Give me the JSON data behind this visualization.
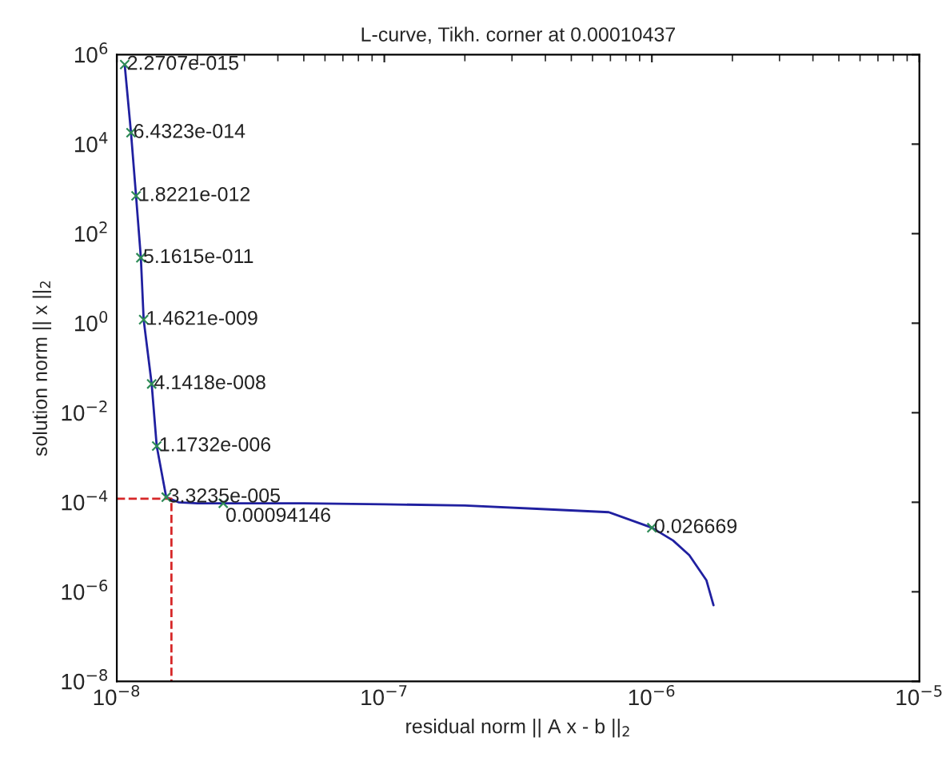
{
  "chart_data": {
    "type": "line",
    "title": "L-curve, Tikh. corner at 0.00010437",
    "xlabel": "residual norm || A x - b ||$_{2}$",
    "ylabel": "solution norm || x ||$_{2}$",
    "log": "xy",
    "grid": false,
    "line_style": "solid",
    "xlim": [
      1e-08,
      1e-05
    ],
    "xticks": [
      {
        "value": 1e-08,
        "label": "10$^{−8}$"
      },
      {
        "value": 1e-07,
        "label": "10$^{−7}$"
      },
      {
        "value": 1e-06,
        "label": "10$^{−6}$"
      },
      {
        "value": 1e-05,
        "label": "10$^{−5}$"
      }
    ],
    "ylim": [
      1e-08,
      1000000.0
    ],
    "yticks": [
      {
        "value": 1e-08,
        "label": "10$^{−8}$"
      },
      {
        "value": 1e-06,
        "label": "10$^{−6}$"
      },
      {
        "value": 0.0001,
        "label": "10$^{−4}$"
      },
      {
        "value": 0.01,
        "label": "10$^{−2}$"
      },
      {
        "value": 1,
        "label": "10$^{0}$"
      },
      {
        "value": 100,
        "label": "10$^{2}$"
      },
      {
        "value": 10000,
        "label": "10$^{4}$"
      },
      {
        "value": 1000000,
        "label": "10$^{6}$"
      }
    ],
    "series": [
      {
        "color": "#2020a0",
        "x": [
          1.07e-08,
          1.13e-08,
          1.18e-08,
          1.23e-08,
          1.26e-08,
          1.35e-08,
          1.41e-08,
          1.53e-08,
          1.7e-08,
          2e-08,
          2.5e-08,
          5e-08,
          1e-07,
          2e-07,
          4e-07,
          6.9e-07,
          1e-06,
          1.2e-06,
          1.38e-06,
          1.6e-06,
          1.7e-06
        ],
        "values": [
          600000.0,
          18000.0,
          700,
          29,
          1.2,
          0.044,
          0.0018,
          0.00013,
          0.0001,
          9.5e-05,
          9.5e-05,
          9.5e-05,
          9e-05,
          8.5e-05,
          7e-05,
          6e-05,
          2.7e-05,
          1.4e-05,
          6.6e-06,
          1.8e-06,
          5e-07
        ]
      },
      {
        "type": "line",
        "color": "#d62728",
        "line_style": "dashed",
        "x": [
          1e-08,
          1.6e-08,
          1.6e-08
        ],
        "values": [
          0.00012,
          0.00012,
          1e-08
        ]
      },
      {
        "type": "scatter",
        "color": "#2e8b57",
        "marker": "cross",
        "x": [
          1.07e-08,
          1.13e-08,
          1.18e-08,
          1.23e-08,
          1.26e-08,
          1.35e-08,
          1.41e-08,
          1.53e-08,
          2.5e-08,
          1e-06
        ],
        "values": [
          600000.0,
          18000.0,
          700,
          29,
          1.2,
          0.044,
          0.0018,
          0.00013,
          9.5e-05,
          2.7e-05
        ]
      }
    ],
    "annotations": [
      {
        "text": "2.2707e-015",
        "x": 1.07e-08,
        "y": 600000.0
      },
      {
        "text": "6.4323e-014",
        "x": 1.13e-08,
        "y": 18000.0
      },
      {
        "text": "1.8221e-012",
        "x": 1.18e-08,
        "y": 700
      },
      {
        "text": "5.1615e-011",
        "x": 1.23e-08,
        "y": 29
      },
      {
        "text": "1.4621e-009",
        "x": 1.26e-08,
        "y": 1.2
      },
      {
        "text": "4.1418e-008",
        "x": 1.35e-08,
        "y": 0.044
      },
      {
        "text": "1.1732e-006",
        "x": 1.41e-08,
        "y": 0.0018
      },
      {
        "text": "3.3235e-005",
        "x": 1.53e-08,
        "y": 0.00013
      },
      {
        "text": "0.00094146",
        "x": 2.5e-08,
        "y": 9.5e-05
      },
      {
        "text": "0.026669",
        "x": 1e-06,
        "y": 2.7e-05
      }
    ]
  }
}
